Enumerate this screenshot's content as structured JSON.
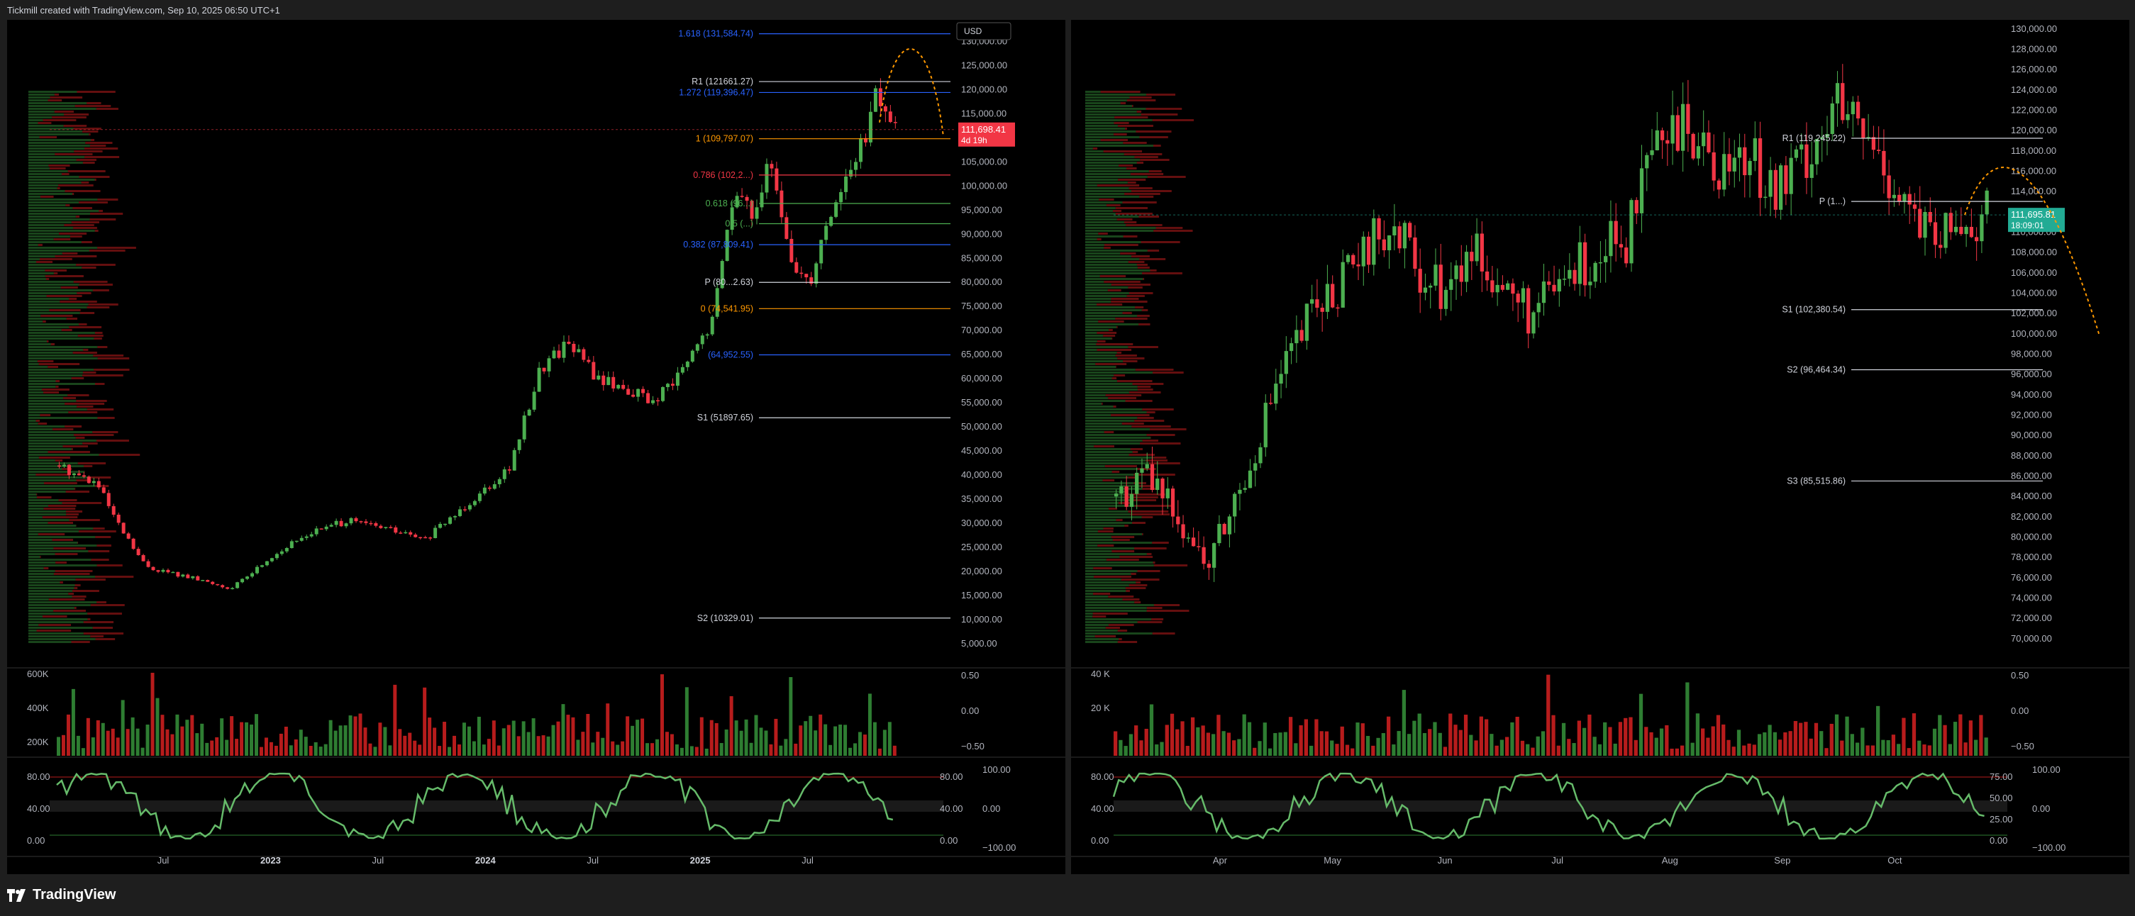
{
  "header": {
    "title": "Tickmill created with TradingView.com, Sep 10, 2025 06:50 UTC+1"
  },
  "footer": {
    "brand": "TradingView"
  },
  "colors": {
    "up": "#4caf50",
    "down": "#f23645",
    "orange": "#ff9800",
    "fib_blue": "#2962ff",
    "fib_green": "#4caf50",
    "white_line": "#d1d4dc",
    "grid": "#2a2a2a",
    "red_tag": "#f23645",
    "green_tag": "#22ab94"
  },
  "chart_data": [
    {
      "id": "left",
      "type": "candlestick",
      "currency": "USD",
      "y_axis_labels": [
        "130,000.00",
        "125,000.00",
        "120,000.00",
        "115,000.00",
        "110,000.00",
        "105,000.00",
        "100,000.00",
        "95,000.00",
        "90,000.00",
        "85,000.00",
        "80,000.00",
        "75,000.00",
        "70,000.00",
        "65,000.00",
        "60,000.00",
        "55,000.00",
        "50,000.00",
        "45,000.00",
        "40,000.00",
        "35,000.00",
        "30,000.00",
        "25,000.00",
        "20,000.00",
        "15,000.00",
        "10,000.00",
        "5,000.00"
      ],
      "ylim": [
        5000,
        133000
      ],
      "x_axis_labels": [
        "Jul",
        "2023",
        "Jul",
        "2024",
        "Jul",
        "2025",
        "Jul"
      ],
      "x_bold": [
        "2023",
        "2024",
        "2025"
      ],
      "price_tag": {
        "price": "111,698.41",
        "countdown": "4d 19h"
      },
      "levels": [
        {
          "label": "1.618 (131,584.74)",
          "value": 131584.74,
          "color": "fib_blue"
        },
        {
          "label": "R1 (121661.27)",
          "value": 121661.27,
          "color": "white_line"
        },
        {
          "label": "1.272 (119,396.47)",
          "value": 119396.47,
          "color": "fib_blue"
        },
        {
          "label": "1 (109,797.07)",
          "value": 109797.07,
          "color": "orange"
        },
        {
          "label": "0.786 (102,2...)",
          "value": 102273,
          "color": "down"
        },
        {
          "label": "0.618 (96...)",
          "value": 96365,
          "color": "fib_green"
        },
        {
          "label": "0.5 (...)",
          "value": 92169,
          "color": "fib_green"
        },
        {
          "label": "0.382 (87,809.41)",
          "value": 87809.41,
          "color": "fib_blue"
        },
        {
          "label": "P (80...2.63)",
          "value": 80000,
          "color": "white_line"
        },
        {
          "label": "0 (74,541.95)",
          "value": 74541.95,
          "color": "orange"
        },
        {
          "label": "(64,952.55)",
          "value": 64952.55,
          "color": "fib_blue"
        },
        {
          "label": "S1 (51897.65)",
          "value": 51897.65,
          "color": "white_line"
        },
        {
          "label": "S2 (10329.01)",
          "value": 10329.01,
          "color": "white_line"
        }
      ],
      "volume_axis": [
        "600K",
        "400K",
        "200K"
      ],
      "osc1_axis": [
        "0.50",
        "0.00",
        "−0.50"
      ],
      "osc2_axis_left": [
        "80.00",
        "40.00",
        "0.00"
      ],
      "osc2_axis_right": [
        "80.00",
        "40.00",
        "0.00"
      ],
      "osc2_axis_far": [
        "100.00",
        "0.00",
        "−100.00"
      ]
    },
    {
      "id": "right",
      "type": "candlestick",
      "y_axis_labels": [
        "130,000.00",
        "128,000.00",
        "126,000.00",
        "124,000.00",
        "122,000.00",
        "120,000.00",
        "118,000.00",
        "116,000.00",
        "114,000.00",
        "112,000.00",
        "110,000.00",
        "108,000.00",
        "106,000.00",
        "104,000.00",
        "102,000.00",
        "100,000.00",
        "98,000.00",
        "96,000.00",
        "94,000.00",
        "92,000.00",
        "90,000.00",
        "88,000.00",
        "86,000.00",
        "84,000.00",
        "82,000.00",
        "80,000.00",
        "78,000.00",
        "76,000.00",
        "74,000.00",
        "72,000.00",
        "70,000.00"
      ],
      "ylim": [
        69500,
        130200
      ],
      "x_axis_labels": [
        "Apr",
        "May",
        "Jun",
        "Jul",
        "Aug",
        "Sep",
        "Oct"
      ],
      "price_tag": {
        "price": "111,695.81",
        "countdown": "18:09:01"
      },
      "levels": [
        {
          "label": "R1 (119,245.22)",
          "value": 119245.22,
          "color": "white_line"
        },
        {
          "label": "P (1...)",
          "value": 113030,
          "color": "white_line"
        },
        {
          "label": "S1 (102,380.54)",
          "value": 102380.54,
          "color": "white_line"
        },
        {
          "label": "S2 (96,464.34)",
          "value": 96464.34,
          "color": "white_line"
        },
        {
          "label": "S3 (85,515.86)",
          "value": 85515.86,
          "color": "white_line"
        }
      ],
      "volume_axis": [
        "40 K",
        "20 K"
      ],
      "osc1_axis": [
        "0.50",
        "0.00",
        "−0.50"
      ],
      "osc2_axis_left": [
        "80.00",
        "40.00",
        "0.00"
      ],
      "osc2_axis_right": [
        "75.00",
        "50.00",
        "25.00",
        "0.00"
      ],
      "osc2_axis_far": [
        "100.00",
        "0.00",
        "−100.00"
      ]
    }
  ]
}
